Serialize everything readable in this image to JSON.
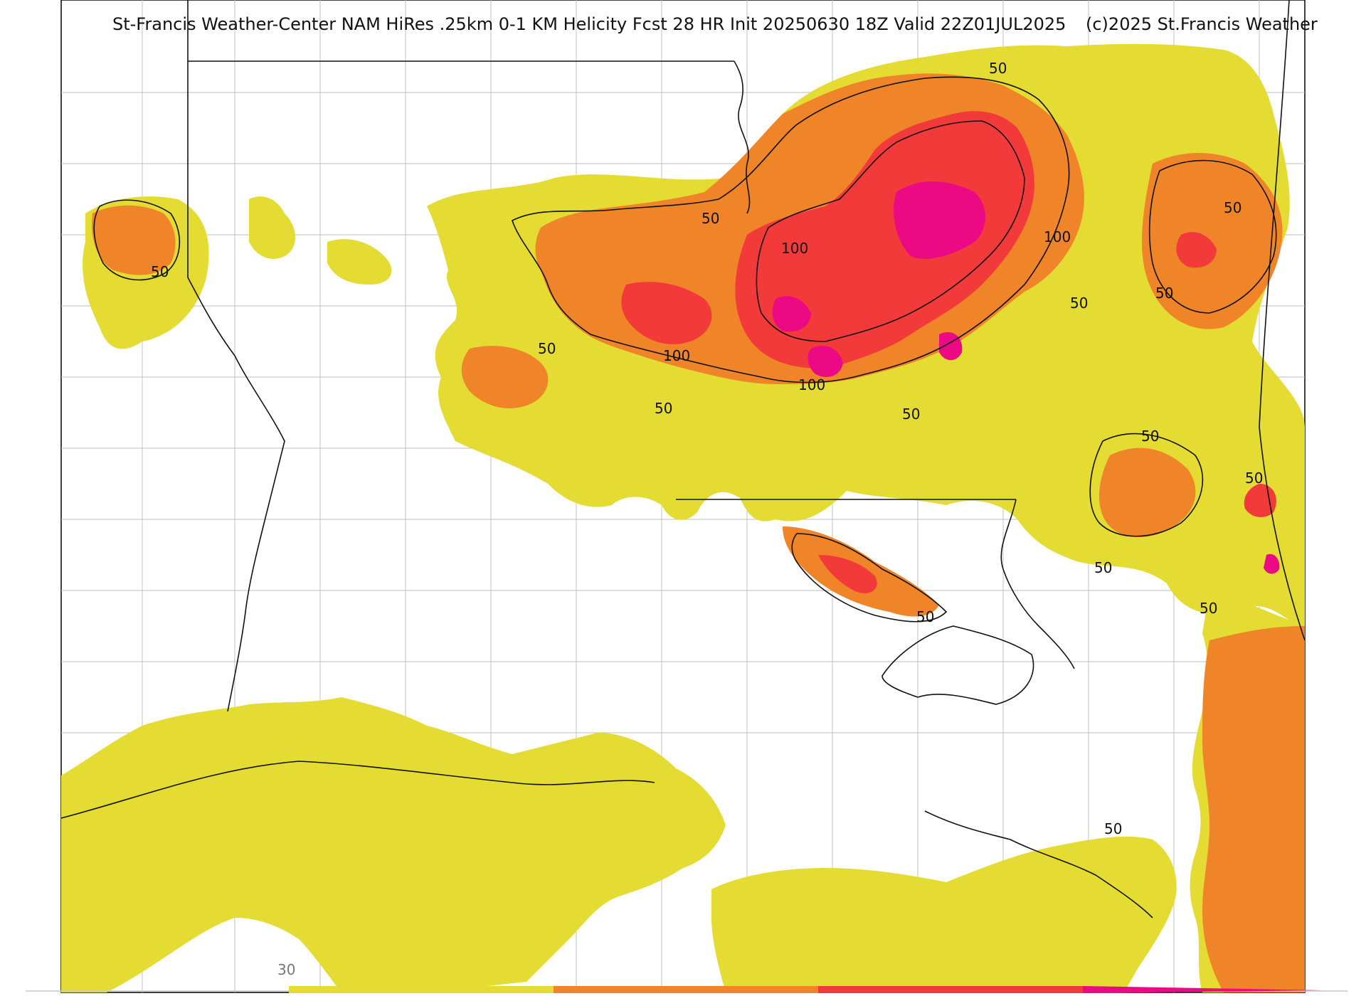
{
  "title": "St-Francis Weather-Center NAM HiRes .25km 0-1 KM Helicity Fcst 28 HR Init 20250630 18Z  Valid 22Z01JUL2025",
  "copyright": "(c)2025 St.Francis Weather",
  "contour_labels": {
    "c50": "50",
    "c100": "100"
  },
  "colorbar": {
    "tick_label": "30",
    "colors": [
      "#e4dc32",
      "#ef8428",
      "#f33a3a",
      "#ec0a84"
    ]
  },
  "shading_colors": {
    "low": "#e4dc32",
    "mid": "#ef8428",
    "high": "#f33a3a",
    "extreme": "#ec0a84"
  }
}
